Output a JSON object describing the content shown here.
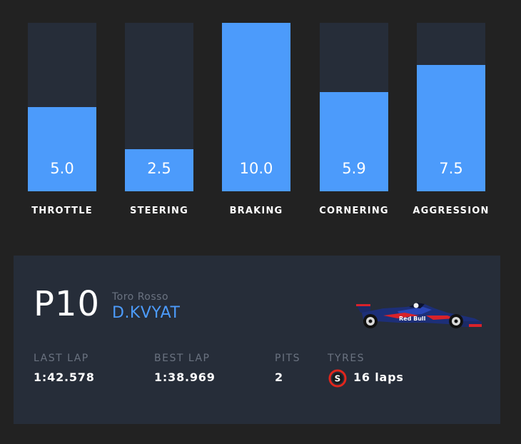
{
  "metrics": [
    {
      "label": "THROTTLE",
      "value": "5.0",
      "score": 5.0
    },
    {
      "label": "STEERING",
      "value": "2.5",
      "score": 2.5
    },
    {
      "label": "BRAKING",
      "value": "10.0",
      "score": 10.0
    },
    {
      "label": "CORNERING",
      "value": "5.9",
      "score": 5.9
    },
    {
      "label": "AGGRESSION",
      "value": "7.5",
      "score": 7.5
    }
  ],
  "metric_max": 10,
  "driver": {
    "position": "P10",
    "team": "Toro Rosso",
    "name": "D.KVYAT",
    "car_icon": "f1-car-image",
    "sponsor_text": "Red Bull"
  },
  "stats": {
    "last_lap_label": "LAST LAP",
    "last_lap_value": "1:42.578",
    "best_lap_label": "BEST LAP",
    "best_lap_value": "1:38.969",
    "pits_label": "PITS",
    "pits_value": "2",
    "tyres_label": "TYRES",
    "tyre_compound": "S",
    "tyre_laps": "16 laps"
  },
  "colors": {
    "background": "#222222",
    "panel": "#262d39",
    "accent": "#4c9bfb",
    "muted_text": "#6b7381",
    "soft_tyre": "#e1261c"
  }
}
